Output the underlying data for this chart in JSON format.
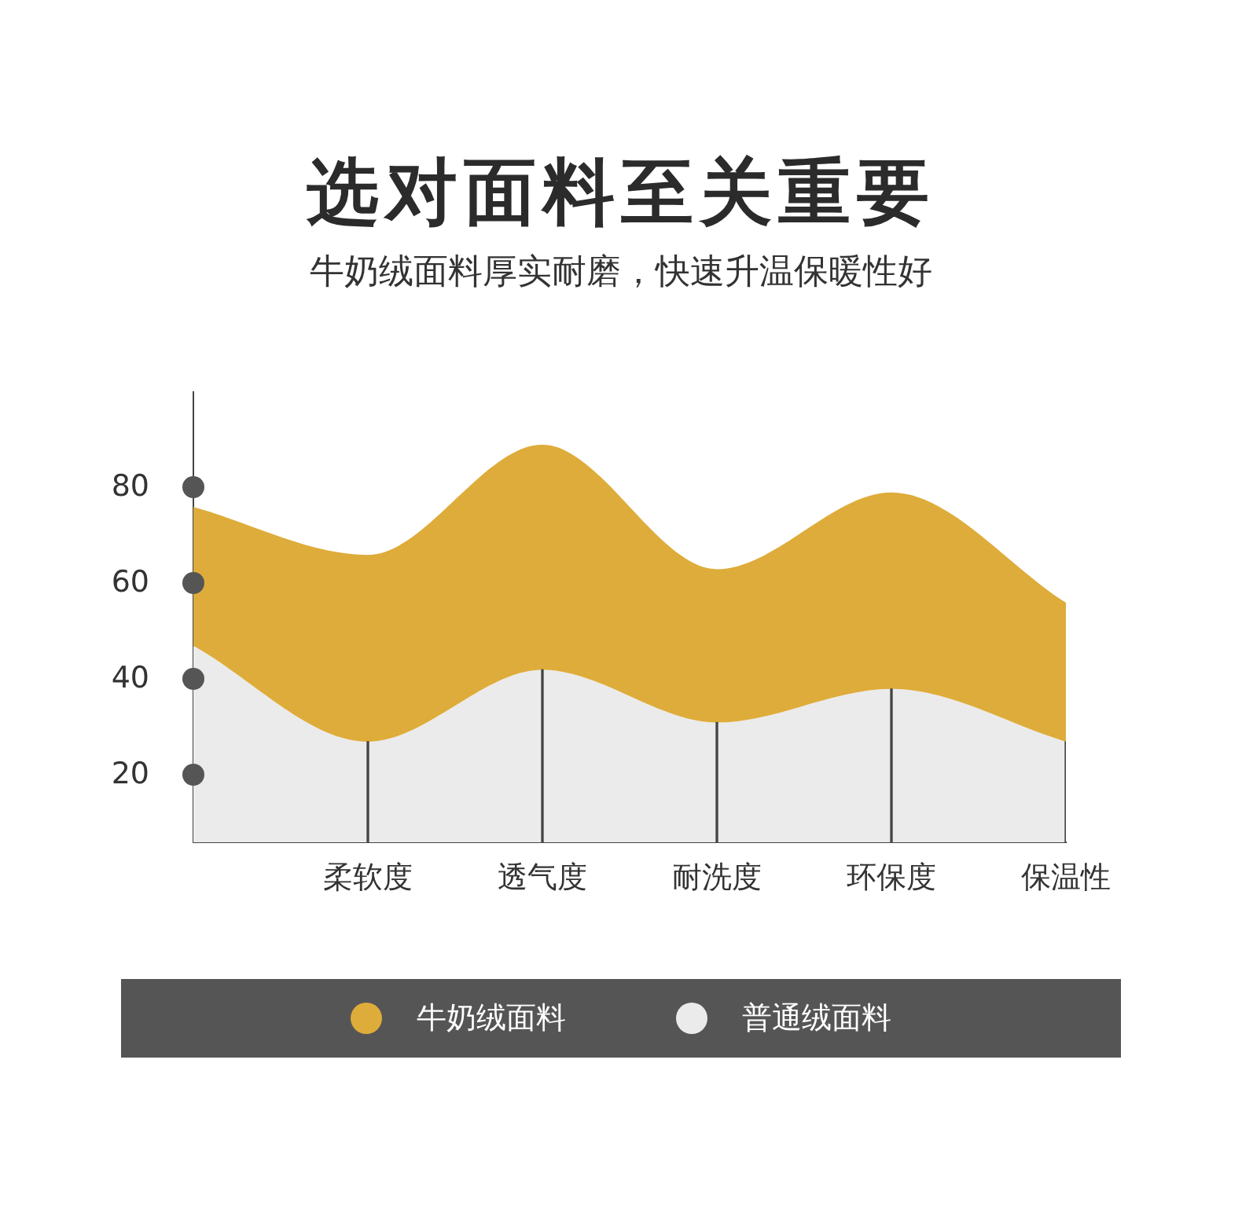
{
  "chart_data": {
    "type": "area",
    "title": "选对面料至关重要",
    "subtitle": "牛奶绒面料厚实耐磨，快速升温保暖性好",
    "categories": [
      null,
      "柔软度",
      "透气度",
      "耐洗度",
      "环保度",
      "保温性"
    ],
    "series": [
      {
        "name": "牛奶绒面料",
        "color": "#deac3a",
        "values": [
          76,
          66,
          89,
          63,
          79,
          56
        ]
      },
      {
        "name": "普通绒面料",
        "color": "#ebebeb",
        "values": [
          47,
          27,
          42,
          31,
          38,
          27
        ]
      },
      {
        "type": "bar",
        "color": "#444444",
        "values": [
          null,
          27,
          42,
          31,
          38,
          27
        ]
      }
    ],
    "ylim": [
      6,
      100
    ],
    "yticks": [
      20,
      40,
      60,
      80
    ],
    "legend": "bottom"
  }
}
